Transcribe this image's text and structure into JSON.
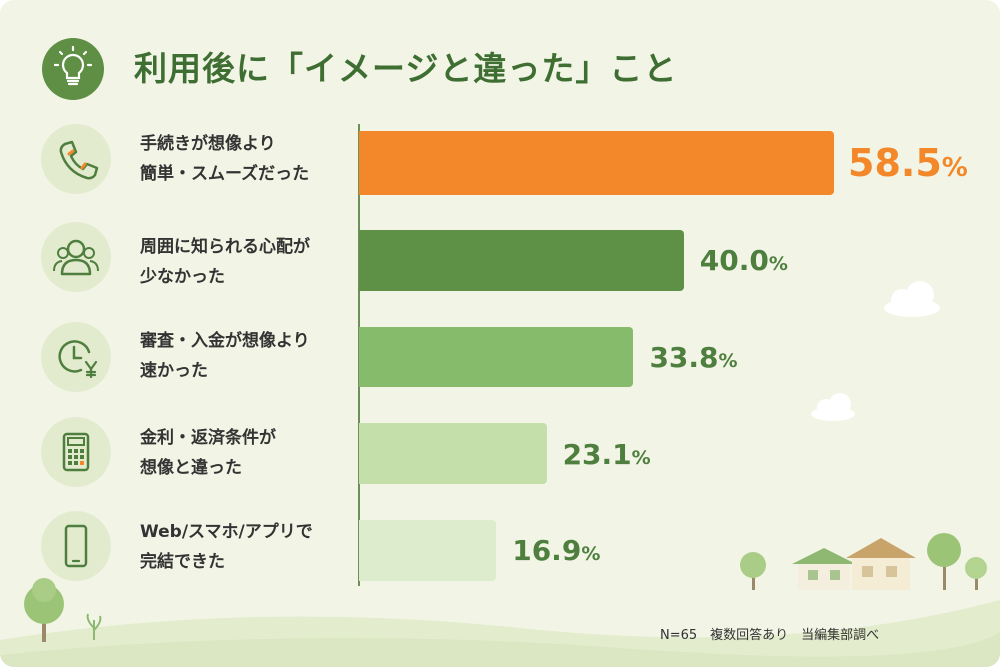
{
  "title": "利用後に「イメージと違った」こと",
  "footer": "N=65　複数回答あり　当編集部調べ",
  "title_icon": "lightbulb-icon",
  "colors": {
    "title": "#3f6e33",
    "highlight": "#f2882a",
    "bar_dark": "#5e9146",
    "bar_mid": "#86bb6b",
    "bar_light": "#c4dfa9",
    "bar_faint": "#dceccc",
    "background": "#f2f5e6"
  },
  "chart_data": {
    "type": "bar",
    "orientation": "horizontal",
    "categories": [
      "手続きが想像より簡単・スムーズだった",
      "周囲に知られる心配が少なかった",
      "審査・入金が想像より速かった",
      "金利・返済条件が想像と違った",
      "Web/スマホ/アプリで完結できた"
    ],
    "values": [
      58.5,
      40.0,
      33.8,
      23.1,
      16.9
    ],
    "unit": "%",
    "xlim": [
      0,
      70
    ],
    "grid": false,
    "legend": "none"
  },
  "rows": [
    {
      "line1": "手続きが想像より",
      "line2": "簡単・スムーズだった",
      "value": "58.5",
      "unit": "%",
      "icon": "phone-icon",
      "color": "#f2882a",
      "text_color": "#f2882a"
    },
    {
      "line1": "周囲に知られる心配が",
      "line2": "少なかった",
      "value": "40.0",
      "unit": "%",
      "icon": "people-icon",
      "color": "#5e9146",
      "text_color": "#4f7f3f"
    },
    {
      "line1": "審査・入金が想像より",
      "line2": "速かった",
      "value": "33.8",
      "unit": "%",
      "icon": "clock-yen-icon",
      "color": "#86bb6b",
      "text_color": "#4f7f3f"
    },
    {
      "line1": "金利・返済条件が",
      "line2": "想像と違った",
      "value": "23.1",
      "unit": "%",
      "icon": "calculator-icon",
      "color": "#c4dfa9",
      "text_color": "#4f7f3f"
    },
    {
      "line1": "Web/スマホ/アプリで",
      "line2": "完結できた",
      "value": "16.9",
      "unit": "%",
      "icon": "smartphone-icon",
      "color": "#dceccc",
      "text_color": "#4f7f3f"
    }
  ]
}
